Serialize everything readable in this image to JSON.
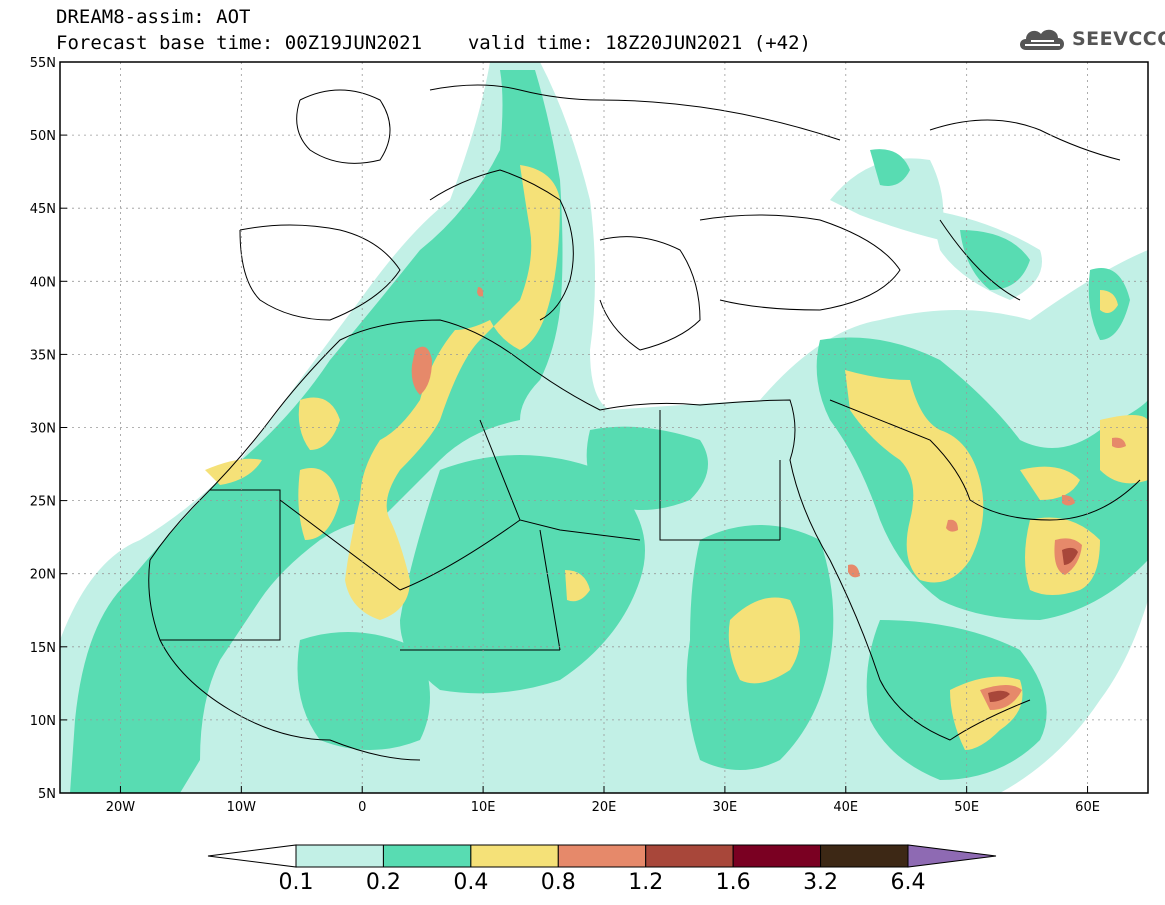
{
  "header": {
    "title": "DREAM8-assim: AOT",
    "subtitle_base": "Forecast base time: 00Z19JUN2021",
    "subtitle_valid": "valid time: 18Z20JUN2021 (+42)",
    "logo_text": "SEEVCCC",
    "logo_icon": "cloud-icon"
  },
  "map": {
    "lon_range": [
      -25,
      65
    ],
    "lat_range": [
      5,
      55
    ],
    "lon_ticks": [
      {
        "value": -20,
        "label": "20W"
      },
      {
        "value": -10,
        "label": "10W"
      },
      {
        "value": 0,
        "label": "0"
      },
      {
        "value": 10,
        "label": "10E"
      },
      {
        "value": 20,
        "label": "20E"
      },
      {
        "value": 30,
        "label": "30E"
      },
      {
        "value": 40,
        "label": "40E"
      },
      {
        "value": 50,
        "label": "50E"
      },
      {
        "value": 60,
        "label": "60E"
      }
    ],
    "lat_ticks": [
      {
        "value": 5,
        "label": "5N"
      },
      {
        "value": 10,
        "label": "10N"
      },
      {
        "value": 15,
        "label": "15N"
      },
      {
        "value": 20,
        "label": "20N"
      },
      {
        "value": 25,
        "label": "25N"
      },
      {
        "value": 30,
        "label": "30N"
      },
      {
        "value": 35,
        "label": "35N"
      },
      {
        "value": 40,
        "label": "40N"
      },
      {
        "value": 45,
        "label": "45N"
      },
      {
        "value": 50,
        "label": "50N"
      },
      {
        "value": 55,
        "label": "55N"
      }
    ],
    "grid": true,
    "colors": {
      "0.1-0.2": "#c2f0e6",
      "0.2-0.4": "#58dcb2",
      "0.4-0.8": "#f5e178",
      "0.8-1.2": "#e6896a",
      "1.2-1.6": "#a8473a",
      "1.6-3.2": "#7a0022",
      "3.2-6.4": "#3d2815",
      "6.4+": "#8e6ab3"
    }
  },
  "colorbar": {
    "labels": [
      "0.1",
      "0.2",
      "0.4",
      "0.8",
      "1.2",
      "1.6",
      "3.2",
      "6.4"
    ],
    "colors": [
      "#c2f0e6",
      "#58dcb2",
      "#f5e178",
      "#e6896a",
      "#a8473a",
      "#7a0022",
      "#3d2815"
    ],
    "under_color": "#ffffff",
    "over_color": "#8e6ab3"
  }
}
